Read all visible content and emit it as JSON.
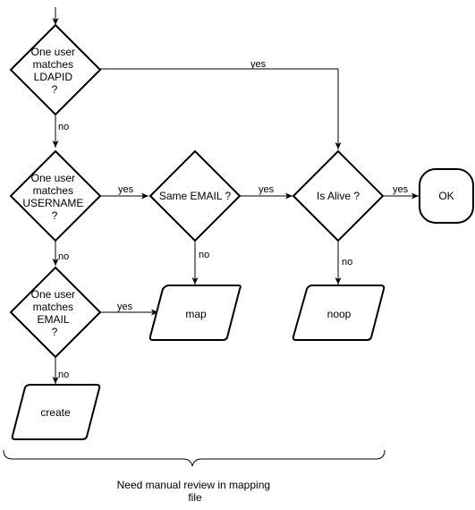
{
  "diagram": {
    "decisions": {
      "ldapid": [
        "One user",
        "matches",
        "LDAPID",
        "?"
      ],
      "username": [
        "One user",
        "matches",
        "USERNAME",
        "?"
      ],
      "email": [
        "One user",
        "matches",
        "EMAIL",
        "?"
      ],
      "same_email": [
        "Same EMAIL ?"
      ],
      "is_alive": [
        "Is Alive ?"
      ]
    },
    "terminals": {
      "ok": "OK"
    },
    "actions": {
      "map": "map",
      "noop": "noop",
      "create": "create"
    },
    "edge_labels": {
      "ldapid_yes": "yes",
      "ldapid_no": "no",
      "username_yes": "yes",
      "username_no": "no",
      "email_yes": "yes",
      "email_no": "no",
      "same_email_yes": "yes",
      "same_email_no": "no",
      "is_alive_yes": "yes",
      "is_alive_no": "no"
    },
    "annotation": [
      "Need manual review in mapping",
      "file"
    ]
  }
}
